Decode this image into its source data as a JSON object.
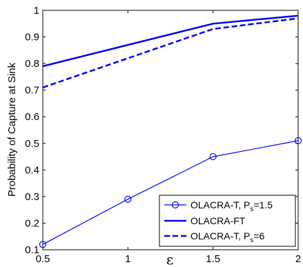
{
  "chart_data": {
    "type": "line",
    "title": "",
    "xlabel": "ε",
    "ylabel": "Probability of Capture at Sink",
    "xlim": [
      0.5,
      2
    ],
    "ylim": [
      0.1,
      1
    ],
    "x_ticks": [
      "0.5",
      "1",
      "1.5",
      "2"
    ],
    "y_ticks": [
      "0.1",
      "0.2",
      "0.3",
      "0.4",
      "0.5",
      "0.6",
      "0.7",
      "0.8",
      "0.9",
      "1"
    ],
    "x": [
      0.5,
      1,
      1.5,
      2
    ],
    "grid": false,
    "legend_position": "bottom-right",
    "series": [
      {
        "name_main": "OLACRA-T, P",
        "name_sub": "s",
        "name_tail": "=1.5",
        "values": [
          0.12,
          0.29,
          0.45,
          0.51
        ],
        "color": "#0000ff",
        "line_style": "solid",
        "line_width": "thin",
        "marker": "circle"
      },
      {
        "name_main": "OLACRA-FT",
        "name_sub": "",
        "name_tail": "",
        "values": [
          0.79,
          0.87,
          0.95,
          0.98
        ],
        "color": "#0000ff",
        "line_style": "solid",
        "line_width": "thick",
        "marker": "none"
      },
      {
        "name_main": "OLACRA-T, P",
        "name_sub": "s",
        "name_tail": "=6",
        "values": [
          0.71,
          0.82,
          0.93,
          0.97
        ],
        "color": "#0000ff",
        "line_style": "dashed",
        "line_width": "thick",
        "marker": "none"
      }
    ]
  }
}
